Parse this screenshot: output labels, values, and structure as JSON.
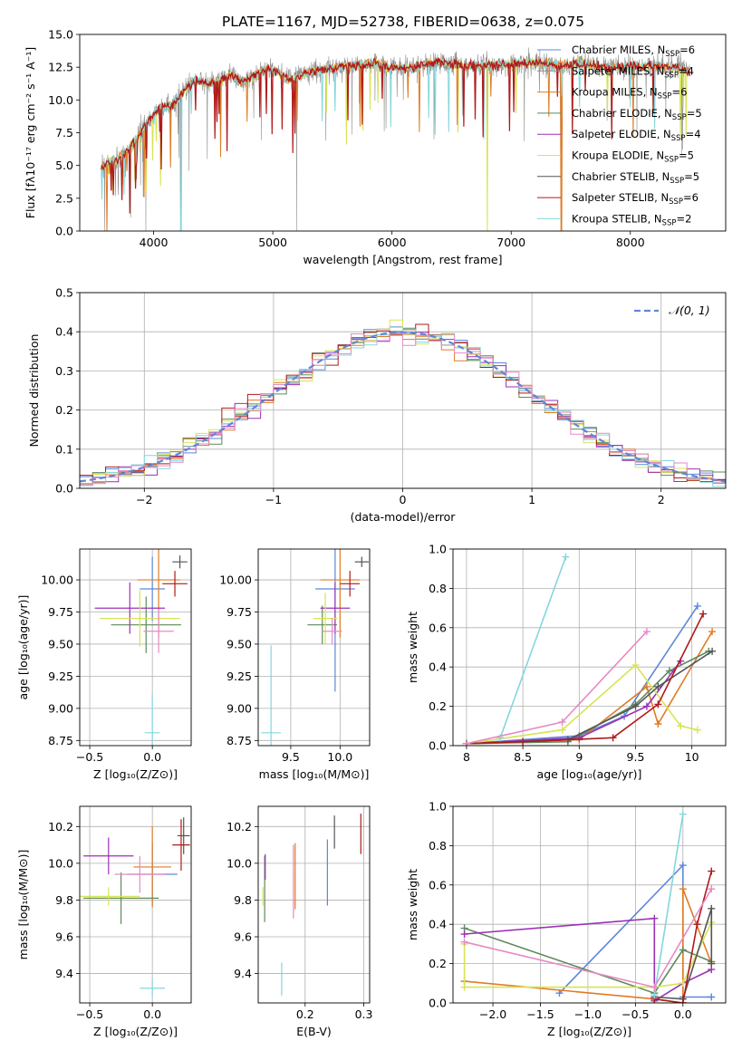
{
  "figure": {
    "title": "PLATE=1167, MJD=52738, FIBERID=0638, z=0.075"
  },
  "series_colors": {
    "Chabrier MILES": "#5f87d8",
    "Salpeter MILES": "#8e8e8e",
    "Kroupa MILES": "#e07b24",
    "Chabrier ELODIE": "#5e8a5a",
    "Salpeter ELODIE": "#9b30b5",
    "Kroupa ELODIE": "#d8e355",
    "Chabrier STELIB": "#555555",
    "Salpeter STELIB": "#b01a1a",
    "Kroupa STELIB": "#84d6dc",
    "pink": "#e68ac4"
  },
  "chart_data": [
    {
      "id": "spectrum",
      "type": "line",
      "title": "PLATE=1167, MJD=52738, FIBERID=0638, z=0.075",
      "xlabel": "wavelength [Angstrom, rest frame]",
      "ylabel": "Flux [fλ10⁻¹⁷ erg cm⁻² s⁻¹ A⁻¹]",
      "xlim": [
        3380,
        8800
      ],
      "ylim": [
        0,
        15
      ],
      "xticks": [
        4000,
        5000,
        6000,
        7000,
        8000
      ],
      "yticks": [
        0.0,
        2.5,
        5.0,
        7.5,
        10.0,
        12.5,
        15.0
      ],
      "legend_position": "right",
      "legend": [
        {
          "base": "Chabrier MILES, N",
          "sub": "SSP",
          "tail": "=6",
          "color": "#5f87d8"
        },
        {
          "base": "Salpeter MILES, N",
          "sub": "SSP",
          "tail": "=4",
          "color": "#8e8e8e"
        },
        {
          "base": "Kroupa MILES, N",
          "sub": "SSP",
          "tail": "=6",
          "color": "#e07b24"
        },
        {
          "base": "Chabrier ELODIE, N",
          "sub": "SSP",
          "tail": "=5",
          "color": "#5e8a5a"
        },
        {
          "base": "Salpeter ELODIE, N",
          "sub": "SSP",
          "tail": "=4",
          "color": "#9b30b5"
        },
        {
          "base": "Kroupa ELODIE, N",
          "sub": "SSP",
          "tail": "=5",
          "color": "#d8e355"
        },
        {
          "base": "Chabrier STELIB, N",
          "sub": "SSP",
          "tail": "=5",
          "color": "#555555"
        },
        {
          "base": "Salpeter STELIB, N",
          "sub": "SSP",
          "tail": "=6",
          "color": "#b01a1a"
        },
        {
          "base": "Kroupa STELIB, N",
          "sub": "SSP",
          "tail": "=2",
          "color": "#84d6dc"
        }
      ],
      "continuum": {
        "x": [
          3560,
          3650,
          3750,
          3850,
          3950,
          4050,
          4150,
          4250,
          4350,
          4450,
          4550,
          4650,
          4750,
          4850,
          4950,
          5050,
          5150,
          5250,
          5400,
          5600,
          5800,
          6000,
          6200,
          6400,
          6600,
          6800,
          7000,
          7200,
          7400,
          7600,
          7800,
          8000,
          8200,
          8400,
          8500
        ],
        "y": [
          4.8,
          5.3,
          5.8,
          7.0,
          8.3,
          9.4,
          9.5,
          10.7,
          11.6,
          11.2,
          11.5,
          11.9,
          11.3,
          11.9,
          12.4,
          12.1,
          11.5,
          12.0,
          12.3,
          12.5,
          12.8,
          12.5,
          12.5,
          12.9,
          12.6,
          12.6,
          12.7,
          12.9,
          12.6,
          12.8,
          12.4,
          12.6,
          12.6,
          12.5,
          12.1
        ]
      },
      "absorption_dips": [
        {
          "x": 3590,
          "y": 0.0
        },
        {
          "x": 3890,
          "y": 3.5
        },
        {
          "x": 3935,
          "y": 0.0
        },
        {
          "x": 4230,
          "y": 0.0
        },
        {
          "x": 5200,
          "y": 0.0
        },
        {
          "x": 6800,
          "y": 0.0
        },
        {
          "x": 7420,
          "y": 0.0
        }
      ]
    },
    {
      "id": "residuals",
      "type": "step",
      "xlabel": "(data-model)/error",
      "ylabel": "Normed distribution",
      "xlim": [
        -2.5,
        2.5
      ],
      "ylim": [
        0,
        0.5
      ],
      "xticks": [
        -2,
        -1,
        0,
        1,
        2
      ],
      "yticks": [
        0.0,
        0.1,
        0.2,
        0.3,
        0.4,
        0.5
      ],
      "legend_position": "upper right",
      "reference_label": "𝒩(0, 1)",
      "reference_color": "#5f87d8",
      "bin_width": 0.1,
      "bin_start": -2.5,
      "series_colors": [
        "#5f87d8",
        "#e07b24",
        "#5e8a5a",
        "#9b30b5",
        "#d8e355",
        "#b01a1a",
        "#84d6dc",
        "#e68ac4"
      ]
    },
    {
      "id": "age_vs_Z",
      "type": "errorbar",
      "xlabel": "Z [log₁₀(Z/Z⊙)]",
      "ylabel": "age  [log₁₀(age/yr)]",
      "xlim": [
        -0.58,
        0.31
      ],
      "ylim": [
        8.71,
        10.24
      ],
      "xticks": [
        -0.5,
        0.0
      ],
      "xtick_labels": [
        "−0.5",
        "0.0"
      ],
      "yticks": [
        8.75,
        9.0,
        9.25,
        9.5,
        9.75,
        10.0
      ],
      "points": [
        {
          "x": 0.0,
          "xerr": 0.1,
          "y": 9.93,
          "yerr": 0.25,
          "color": "#5f87d8"
        },
        {
          "x": 0.05,
          "xerr": 0.17,
          "y": 10.0,
          "yerr": 0.45,
          "color": "#e07b24"
        },
        {
          "x": -0.05,
          "xerr": 0.28,
          "y": 9.65,
          "yerr": 0.22,
          "color": "#5e8a5a"
        },
        {
          "x": -0.18,
          "xerr": 0.28,
          "y": 9.78,
          "yerr": 0.2,
          "color": "#9b30b5"
        },
        {
          "x": -0.1,
          "xerr": 0.32,
          "y": 9.7,
          "yerr": 0.22,
          "color": "#d8e355"
        },
        {
          "x": 0.22,
          "xerr": 0.06,
          "y": 10.14,
          "yerr": 0.05,
          "color": "#555555"
        },
        {
          "x": 0.18,
          "xerr": 0.1,
          "y": 9.97,
          "yerr": 0.1,
          "color": "#b01a1a"
        },
        {
          "x": 0.0,
          "xerr": 0.06,
          "y": 8.81,
          "yerr": 0.3,
          "color": "#84d6dc"
        },
        {
          "x": 0.05,
          "xerr": 0.12,
          "y": 9.6,
          "yerr": 0.17,
          "color": "#e68ac4"
        }
      ]
    },
    {
      "id": "age_vs_mass",
      "type": "errorbar",
      "xlabel": "mass [log₁₀(M/M⊙)]",
      "xlim": [
        9.17,
        10.3
      ],
      "ylim": [
        8.71,
        10.24
      ],
      "xticks": [
        9.5,
        10.0
      ],
      "xtick_labels": [
        "9.5",
        "10.0"
      ],
      "yticks": [
        8.75,
        9.0,
        9.25,
        9.5,
        9.75,
        10.0
      ],
      "points": [
        {
          "x": 9.95,
          "xerr": 0.2,
          "y": 9.93,
          "yerr": 0.8,
          "color": "#5f87d8"
        },
        {
          "x": 10.0,
          "xerr": 0.2,
          "y": 10.0,
          "yerr": 0.45,
          "color": "#e07b24"
        },
        {
          "x": 9.82,
          "xerr": 0.15,
          "y": 9.65,
          "yerr": 0.15,
          "color": "#5e8a5a"
        },
        {
          "x": 9.95,
          "xerr": 0.15,
          "y": 9.78,
          "yerr": 0.2,
          "color": "#9b30b5"
        },
        {
          "x": 9.85,
          "xerr": 0.12,
          "y": 9.7,
          "yerr": 0.2,
          "color": "#d8e355"
        },
        {
          "x": 10.22,
          "xerr": 0.07,
          "y": 10.14,
          "yerr": 0.04,
          "color": "#555555"
        },
        {
          "x": 10.1,
          "xerr": 0.1,
          "y": 9.97,
          "yerr": 0.1,
          "color": "#b01a1a"
        },
        {
          "x": 9.3,
          "xerr": 0.1,
          "y": 8.81,
          "yerr": 0.68,
          "color": "#84d6dc"
        },
        {
          "x": 9.92,
          "xerr": 0.1,
          "y": 9.6,
          "yerr": 0.1,
          "color": "#e68ac4"
        }
      ]
    },
    {
      "id": "mw_vs_age",
      "type": "line",
      "xlabel": "age  [log₁₀(age/yr)]",
      "ylabel": "mass weight",
      "xlim": [
        7.88,
        10.3
      ],
      "ylim": [
        0,
        1.0
      ],
      "xticks": [
        8.0,
        8.5,
        9.0,
        9.5,
        10.0
      ],
      "yticks": [
        0.0,
        0.2,
        0.4,
        0.6,
        0.8,
        1.0
      ],
      "series": [
        {
          "color": "#5f87d8",
          "x": [
            8.0,
            9.0,
            9.4,
            10.05
          ],
          "y": [
            0.01,
            0.05,
            0.15,
            0.71
          ]
        },
        {
          "color": "#e07b24",
          "x": [
            8.0,
            9.0,
            9.6,
            9.7,
            10.18
          ],
          "y": [
            0.01,
            0.03,
            0.3,
            0.11,
            0.58
          ]
        },
        {
          "color": "#5e8a5a",
          "x": [
            8.0,
            8.9,
            9.5,
            9.8,
            10.15
          ],
          "y": [
            0.01,
            0.02,
            0.21,
            0.38,
            0.48
          ]
        },
        {
          "color": "#9b30b5",
          "x": [
            8.0,
            9.0,
            9.6,
            9.9
          ],
          "y": [
            0.01,
            0.04,
            0.2,
            0.43
          ]
        },
        {
          "color": "#d8e355",
          "x": [
            8.0,
            8.85,
            9.5,
            9.9,
            10.05
          ],
          "y": [
            0.01,
            0.08,
            0.41,
            0.1,
            0.08
          ]
        },
        {
          "color": "#555555",
          "x": [
            8.0,
            8.9,
            9.5,
            9.7,
            10.18
          ],
          "y": [
            0.01,
            0.03,
            0.2,
            0.3,
            0.48
          ]
        },
        {
          "color": "#b01a1a",
          "x": [
            8.0,
            8.5,
            9.3,
            9.7,
            10.1
          ],
          "y": [
            0.01,
            0.02,
            0.04,
            0.21,
            0.67
          ]
        },
        {
          "color": "#84d6dc",
          "x": [
            8.3,
            8.88
          ],
          "y": [
            0.04,
            0.96
          ]
        },
        {
          "color": "#e68ac4",
          "x": [
            8.0,
            8.85,
            9.6
          ],
          "y": [
            0.01,
            0.12,
            0.58
          ]
        }
      ]
    },
    {
      "id": "mass_vs_Z",
      "type": "errorbar",
      "xlabel": "Z [log₁₀(Z/Z⊙)]",
      "ylabel": "mass [log₁₀(M/M⊙)]",
      "xlim": [
        -0.58,
        0.31
      ],
      "ylim": [
        9.24,
        10.31
      ],
      "xticks": [
        -0.5,
        0.0
      ],
      "xtick_labels": [
        "−0.5",
        "0.0"
      ],
      "yticks": [
        9.4,
        9.6,
        9.8,
        10.0,
        10.2
      ],
      "points": [
        {
          "x": 0.0,
          "xerr": 0.2,
          "y": 9.94,
          "yerr": 0.17,
          "color": "#5f87d8"
        },
        {
          "x": 0.0,
          "xerr": 0.15,
          "y": 9.98,
          "yerr": 0.22,
          "color": "#e07b24"
        },
        {
          "x": -0.25,
          "xerr": 0.3,
          "y": 9.81,
          "yerr": 0.14,
          "color": "#5e8a5a"
        },
        {
          "x": -0.35,
          "xerr": 0.2,
          "y": 10.04,
          "yerr": 0.1,
          "color": "#9b30b5"
        },
        {
          "x": -0.35,
          "xerr": 0.25,
          "y": 9.82,
          "yerr": 0.05,
          "color": "#d8e355"
        },
        {
          "x": 0.25,
          "xerr": 0.05,
          "y": 10.15,
          "yerr": 0.1,
          "color": "#555555"
        },
        {
          "x": 0.23,
          "xerr": 0.07,
          "y": 10.1,
          "yerr": 0.14,
          "color": "#b01a1a"
        },
        {
          "x": 0.0,
          "xerr": 0.1,
          "y": 9.32,
          "yerr": 0.05,
          "color": "#84d6dc"
        },
        {
          "x": -0.1,
          "xerr": 0.2,
          "y": 9.94,
          "yerr": 0.1,
          "color": "#e68ac4"
        }
      ]
    },
    {
      "id": "mass_vs_ebv",
      "type": "errorbar",
      "xlabel": "E(B-V)",
      "xlim": [
        0.12,
        0.31
      ],
      "ylim": [
        9.24,
        10.31
      ],
      "xticks": [
        0.2,
        0.3
      ],
      "xtick_labels": [
        "0.2",
        "0.3"
      ],
      "yticks": [
        9.4,
        9.6,
        9.8,
        10.0,
        10.2
      ],
      "points": [
        {
          "x": 0.238,
          "xerr": 0,
          "y": 9.95,
          "yerr": 0.18,
          "color": "#5f87d8"
        },
        {
          "x": 0.183,
          "xerr": 0,
          "y": 9.93,
          "yerr": 0.18,
          "color": "#e07b24"
        },
        {
          "x": 0.131,
          "xerr": 0,
          "y": 9.86,
          "yerr": 0.18,
          "color": "#5e8a5a"
        },
        {
          "x": 0.132,
          "xerr": 0,
          "y": 9.98,
          "yerr": 0.07,
          "color": "#9b30b5"
        },
        {
          "x": 0.128,
          "xerr": 0,
          "y": 9.82,
          "yerr": 0.05,
          "color": "#d8e355"
        },
        {
          "x": 0.25,
          "xerr": 0,
          "y": 10.17,
          "yerr": 0.09,
          "color": "#555555"
        },
        {
          "x": 0.295,
          "xerr": 0,
          "y": 10.16,
          "yerr": 0.11,
          "color": "#b01a1a"
        },
        {
          "x": 0.16,
          "xerr": 0,
          "y": 9.37,
          "yerr": 0.09,
          "color": "#84d6dc"
        },
        {
          "x": 0.18,
          "xerr": 0,
          "y": 9.9,
          "yerr": 0.2,
          "color": "#e68ac4"
        }
      ]
    },
    {
      "id": "mw_vs_Z",
      "type": "line",
      "xlabel": "Z [log₁₀(Z/Z⊙)]",
      "ylabel": "mass weight",
      "xlim": [
        -2.42,
        0.45
      ],
      "ylim": [
        0,
        1.0
      ],
      "xticks": [
        -2.0,
        -1.5,
        -1.0,
        -0.5,
        0.0
      ],
      "xtick_labels": [
        "−2.0",
        "−1.5",
        "−1.0",
        "−0.5",
        "0.0"
      ],
      "yticks": [
        0.0,
        0.2,
        0.4,
        0.6,
        0.8,
        1.0
      ],
      "series": [
        {
          "color": "#5f87d8",
          "x": [
            -1.3,
            0.0,
            0.0,
            0.3
          ],
          "y": [
            0.05,
            0.7,
            0.03,
            0.03
          ]
        },
        {
          "color": "#e07b24",
          "x": [
            -2.3,
            -0.3,
            0.0,
            0.0,
            0.3
          ],
          "y": [
            0.11,
            0.02,
            0.0,
            0.58,
            0.2
          ]
        },
        {
          "color": "#5e8a5a",
          "x": [
            -2.3,
            -0.3,
            0.0,
            0.3
          ],
          "y": [
            0.38,
            0.05,
            0.27,
            0.21
          ]
        },
        {
          "color": "#9b30b5",
          "x": [
            -2.3,
            -0.3,
            -0.3,
            0.0,
            0.3
          ],
          "y": [
            0.35,
            0.43,
            0.01,
            0.1,
            0.17
          ]
        },
        {
          "color": "#d8e355",
          "x": [
            -2.3,
            -2.3,
            -0.3,
            0.0,
            0.3
          ],
          "y": [
            0.3,
            0.08,
            0.08,
            0.1,
            0.41
          ]
        },
        {
          "color": "#555555",
          "x": [
            -0.3,
            0.0,
            0.3,
            0.3
          ],
          "y": [
            0.03,
            0.02,
            0.48,
            0.2
          ]
        },
        {
          "color": "#b01a1a",
          "x": [
            -0.3,
            0.0,
            0.15,
            0.3
          ],
          "y": [
            0.02,
            0.0,
            0.4,
            0.67
          ]
        },
        {
          "color": "#84d6dc",
          "x": [
            -0.3,
            0.0
          ],
          "y": [
            0.04,
            0.96
          ]
        },
        {
          "color": "#e68ac4",
          "x": [
            -2.3,
            -0.3,
            0.3
          ],
          "y": [
            0.31,
            0.08,
            0.58
          ]
        }
      ]
    }
  ]
}
